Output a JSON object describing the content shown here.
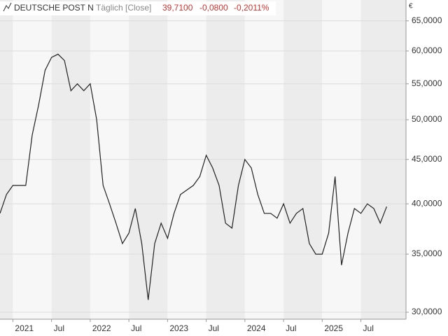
{
  "chart_data": {
    "type": "line",
    "title": "DEUTSCHE POST N",
    "subtitle": "Täglich [Close]",
    "last": "39,7100",
    "change": "-0,0800",
    "change_pct": "-0,2011%",
    "y_unit": "€",
    "x": [
      "2020-11",
      "2020-12",
      "2021-01",
      "2021-02",
      "2021-03",
      "2021-04",
      "2021-05",
      "2021-06",
      "2021-07",
      "2021-08",
      "2021-09",
      "2021-10",
      "2021-11",
      "2021-12",
      "2022-01",
      "2022-02",
      "2022-03",
      "2022-04",
      "2022-05",
      "2022-06",
      "2022-07",
      "2022-08",
      "2022-09",
      "2022-10",
      "2022-11",
      "2022-12",
      "2023-01",
      "2023-02",
      "2023-03",
      "2023-04",
      "2023-05",
      "2023-06",
      "2023-07",
      "2023-08",
      "2023-09",
      "2023-10",
      "2023-11",
      "2023-12",
      "2024-01",
      "2024-02",
      "2024-03",
      "2024-04",
      "2024-05",
      "2024-06",
      "2024-07",
      "2024-08",
      "2024-09",
      "2024-10",
      "2024-11",
      "2024-12",
      "2025-01",
      "2025-02",
      "2025-03",
      "2025-04",
      "2025-05",
      "2025-06",
      "2025-07",
      "2025-08",
      "2025-09",
      "2025-10",
      "2025-11"
    ],
    "series": [
      {
        "color": "#222222",
        "values": [
          39,
          41,
          42,
          42,
          42,
          48,
          52,
          57,
          59,
          59.5,
          58.5,
          54,
          55,
          54,
          55,
          50,
          42,
          40,
          38,
          36,
          37,
          39.5,
          36,
          31,
          36,
          38,
          36.5,
          39,
          41,
          41.5,
          42,
          43,
          45.5,
          44,
          42,
          38,
          37.5,
          42,
          45,
          44,
          41,
          39,
          39,
          38.5,
          40,
          38,
          39,
          39.5,
          36,
          35,
          35,
          37,
          43,
          34,
          37,
          39.5,
          39,
          40,
          39.5,
          38,
          39.7
        ]
      }
    ],
    "log_scale": true,
    "ylim": [
      29.45,
      68.7
    ],
    "yticks": [
      {
        "value": 30,
        "label": "30,0000"
      },
      {
        "value": 35,
        "label": "35,0000"
      },
      {
        "value": 40,
        "label": "40,0000"
      },
      {
        "value": 45,
        "label": "45,0000"
      },
      {
        "value": 50,
        "label": "50,0000"
      },
      {
        "value": 55,
        "label": "55,0000"
      },
      {
        "value": 60,
        "label": "60,0000"
      },
      {
        "value": 65,
        "label": "65,0000"
      }
    ],
    "xlim": [
      "2020-11",
      "2026-02"
    ],
    "xticks": [
      {
        "value": "2021-01",
        "label": "2021"
      },
      {
        "value": "2021-07",
        "label": "Jul"
      },
      {
        "value": "2022-01",
        "label": "2022"
      },
      {
        "value": "2022-07",
        "label": "Jul"
      },
      {
        "value": "2023-01",
        "label": "2023"
      },
      {
        "value": "2023-07",
        "label": "Jul"
      },
      {
        "value": "2024-01",
        "label": "2024"
      },
      {
        "value": "2024-07",
        "label": "Jul"
      },
      {
        "value": "2025-01",
        "label": "2025"
      },
      {
        "value": "2025-07",
        "label": "Jul"
      }
    ],
    "grid": true
  }
}
